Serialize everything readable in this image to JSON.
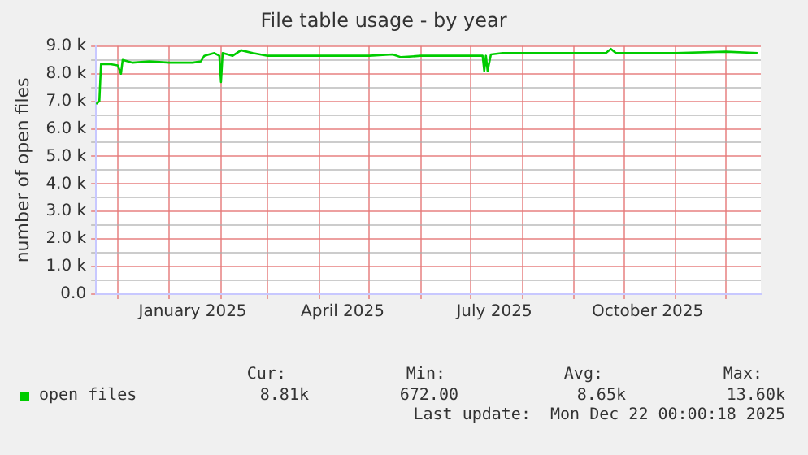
{
  "chart_data": {
    "type": "line",
    "title": "File table usage - by year",
    "ylabel": "number of open files",
    "x": [
      "2024-11-18",
      "2024-11-20",
      "2024-11-21",
      "2024-11-26",
      "2024-12-01",
      "2024-12-03",
      "2024-12-04",
      "2024-12-10",
      "2024-12-20",
      "2025-01-01",
      "2025-01-15",
      "2025-01-20",
      "2025-01-22",
      "2025-01-28",
      "2025-01-31",
      "2025-02-01",
      "2025-02-02",
      "2025-02-08",
      "2025-02-13",
      "2025-02-20",
      "2025-03-01",
      "2025-03-12",
      "2025-04-15",
      "2025-05-01",
      "2025-05-15",
      "2025-05-20",
      "2025-06-01",
      "2025-06-28",
      "2025-07-08",
      "2025-07-09",
      "2025-07-10",
      "2025-07-11",
      "2025-07-13",
      "2025-07-20",
      "2025-08-01",
      "2025-09-01",
      "2025-09-20",
      "2025-09-23",
      "2025-09-26",
      "2025-10-15",
      "2025-11-01",
      "2025-12-01",
      "2025-12-20"
    ],
    "series": [
      {
        "name": "open files",
        "color": "#00cc00",
        "values": [
          6900,
          7000,
          8350,
          8350,
          8300,
          8000,
          8500,
          8400,
          8450,
          8400,
          8400,
          8450,
          8650,
          8750,
          8650,
          7700,
          8750,
          8650,
          8850,
          8750,
          8650,
          8650,
          8650,
          8650,
          8700,
          8600,
          8650,
          8650,
          8650,
          8100,
          8650,
          8100,
          8700,
          8750,
          8750,
          8750,
          8750,
          8900,
          8750,
          8750,
          8750,
          8800,
          8750
        ]
      }
    ],
    "xlim": [
      "2024-11-18",
      "2025-12-22"
    ],
    "xticks": [
      {
        "value": "2024-12-01",
        "label": null
      },
      {
        "value": "2025-01-01",
        "label": null
      },
      {
        "value": "2025-01-15",
        "label": "January 2025"
      },
      {
        "value": "2025-02-01",
        "label": null
      },
      {
        "value": "2025-03-01",
        "label": null
      },
      {
        "value": "2025-04-01",
        "label": null
      },
      {
        "value": "2025-04-15",
        "label": "April 2025"
      },
      {
        "value": "2025-05-01",
        "label": null
      },
      {
        "value": "2025-06-01",
        "label": null
      },
      {
        "value": "2025-07-01",
        "label": null
      },
      {
        "value": "2025-07-15",
        "label": "July 2025"
      },
      {
        "value": "2025-08-01",
        "label": null
      },
      {
        "value": "2025-09-01",
        "label": null
      },
      {
        "value": "2025-10-01",
        "label": null
      },
      {
        "value": "2025-10-15",
        "label": "October 2025"
      },
      {
        "value": "2025-11-01",
        "label": null
      },
      {
        "value": "2025-12-01",
        "label": null
      }
    ],
    "ylim": [
      0,
      9000
    ],
    "yticks": [
      {
        "value": 0,
        "label": "0.0"
      },
      {
        "value": 500,
        "label": null
      },
      {
        "value": 1000,
        "label": "1.0 k"
      },
      {
        "value": 1500,
        "label": null
      },
      {
        "value": 2000,
        "label": "2.0 k"
      },
      {
        "value": 2500,
        "label": null
      },
      {
        "value": 3000,
        "label": "3.0 k"
      },
      {
        "value": 3500,
        "label": null
      },
      {
        "value": 4000,
        "label": "4.0 k"
      },
      {
        "value": 4500,
        "label": null
      },
      {
        "value": 5000,
        "label": "5.0 k"
      },
      {
        "value": 5500,
        "label": null
      },
      {
        "value": 6000,
        "label": "6.0 k"
      },
      {
        "value": 6500,
        "label": null
      },
      {
        "value": 7000,
        "label": "7.0 k"
      },
      {
        "value": 7500,
        "label": null
      },
      {
        "value": 8000,
        "label": "8.0 k"
      },
      {
        "value": 8500,
        "label": null
      },
      {
        "value": 9000,
        "label": "9.0 k"
      }
    ],
    "grid": true,
    "legend": "bottom left",
    "marker": "none",
    "line_style": "solid",
    "annotations": [
      "Cur:",
      "Min:",
      "Avg:",
      "Max:",
      "8.81k",
      "672.00",
      "8.65k",
      "13.60k",
      "Last update:  Mon Dec 22 00:00:18 2025"
    ]
  }
}
